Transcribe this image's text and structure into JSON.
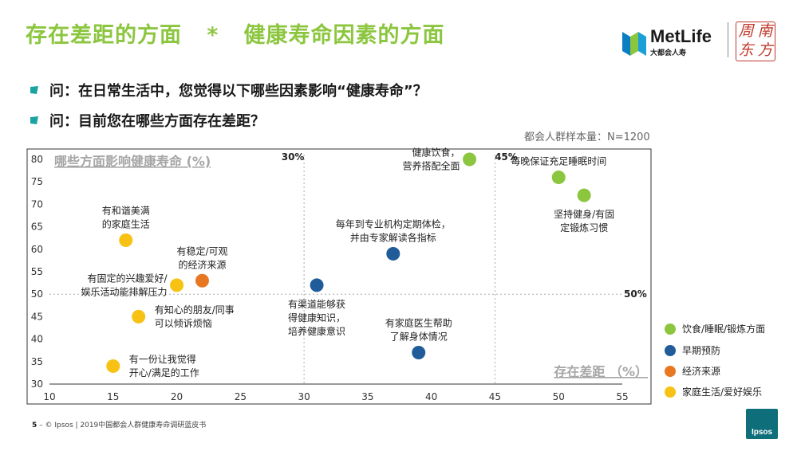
{
  "header": {
    "title": "存在差距的方面   *   健康寿命因素的方面",
    "brand_name": "MetLife",
    "brand_sub": "大都会人寿",
    "seal_chars": [
      "周",
      "南",
      "东",
      "方"
    ]
  },
  "questions": [
    "问：在日常生活中，您觉得以下哪些因素影响“健康寿命”？",
    "问：目前您在哪些方面存在差距？"
  ],
  "sample_note": "都会人群样本量：N=1200",
  "footer": {
    "page": "5",
    "text": "© Ipsos | 2019中国都会人群健康寿命调研蓝皮书",
    "logo": "Ipsos"
  },
  "colors": {
    "title_green": "#8cc63f",
    "series_green": "#8cc63f",
    "series_blue": "#1f5c99",
    "series_orange": "#e87722",
    "series_yellow": "#f7c214"
  },
  "chart_data": {
    "type": "scatter",
    "ylabel": "哪些方面影响健康寿命 (%)",
    "xlabel": "存在差距 （%）",
    "xlim": [
      10,
      55
    ],
    "ylim": [
      30,
      80
    ],
    "xticks": [
      10,
      15,
      20,
      25,
      30,
      35,
      40,
      45,
      50,
      55
    ],
    "yticks": [
      30,
      35,
      40,
      45,
      50,
      55,
      60,
      65,
      70,
      75,
      80
    ],
    "reference_lines": [
      {
        "axis": "x",
        "value": 30,
        "label": "30%"
      },
      {
        "axis": "x",
        "value": 45,
        "label": "45%"
      },
      {
        "axis": "y",
        "value": 50,
        "label": "50%"
      }
    ],
    "legend_position": "right",
    "series": [
      {
        "name": "饮食/睡眠/锻炼方面",
        "color": "#8cc63f",
        "points": [
          {
            "x": 43,
            "y": 80,
            "label": [
              "健康饮食，",
              "营养搭配全面"
            ],
            "anchor": "left"
          },
          {
            "x": 50,
            "y": 76,
            "label": [
              "每晚保证充足睡眠时间"
            ],
            "anchor": "above"
          },
          {
            "x": 52,
            "y": 72,
            "label": [
              "坚持健身/有固",
              "定锻炼习惯"
            ],
            "anchor": "below"
          }
        ]
      },
      {
        "name": "早期预防",
        "color": "#1f5c99",
        "points": [
          {
            "x": 37,
            "y": 59,
            "label": [
              "每年到专业机构定期体检，",
              "并由专家解读各指标"
            ],
            "anchor": "above"
          },
          {
            "x": 31,
            "y": 52,
            "label": [
              "有渠道能够获",
              "得健康知识，",
              "培养健康意识"
            ],
            "anchor": "below"
          },
          {
            "x": 39,
            "y": 37,
            "label": [
              "有家庭医生帮助",
              "了解身体情况"
            ],
            "anchor": "above"
          }
        ]
      },
      {
        "name": "经济来源",
        "color": "#e87722",
        "points": [
          {
            "x": 22,
            "y": 53,
            "label": [
              "有稳定/可观",
              "的经济来源"
            ],
            "anchor": "above"
          }
        ]
      },
      {
        "name": "家庭生活/爱好娱乐",
        "color": "#f7c214",
        "points": [
          {
            "x": 16,
            "y": 62,
            "label": [
              "有和谐美满",
              "的家庭生活"
            ],
            "anchor": "above"
          },
          {
            "x": 20,
            "y": 52,
            "label": [
              "有固定的兴趣爱好/",
              "娱乐活动能排解压力"
            ],
            "anchor": "left"
          },
          {
            "x": 17,
            "y": 45,
            "label": [
              "有知心的朋友/同事",
              "可以倾诉烦恼"
            ],
            "anchor": "right"
          },
          {
            "x": 15,
            "y": 34,
            "label": [
              "有一份让我觉得",
              "开心/满足的工作"
            ],
            "anchor": "right"
          }
        ]
      }
    ]
  }
}
